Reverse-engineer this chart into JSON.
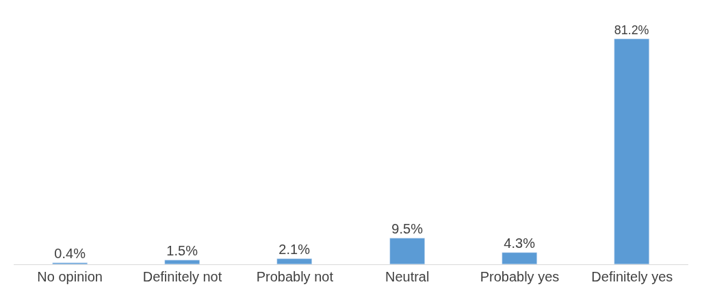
{
  "chart_data": {
    "type": "bar",
    "categories": [
      "No opinion",
      "Definitely not",
      "Probably not",
      "Neutral",
      "Probably yes",
      "Definitely yes"
    ],
    "values": [
      0.4,
      1.5,
      2.1,
      9.5,
      4.3,
      81.2
    ],
    "value_labels": [
      "0.4%",
      "1.5%",
      "2.1%",
      "9.5%",
      "4.3%",
      "81.2%"
    ],
    "color": "#5b9bd5"
  }
}
